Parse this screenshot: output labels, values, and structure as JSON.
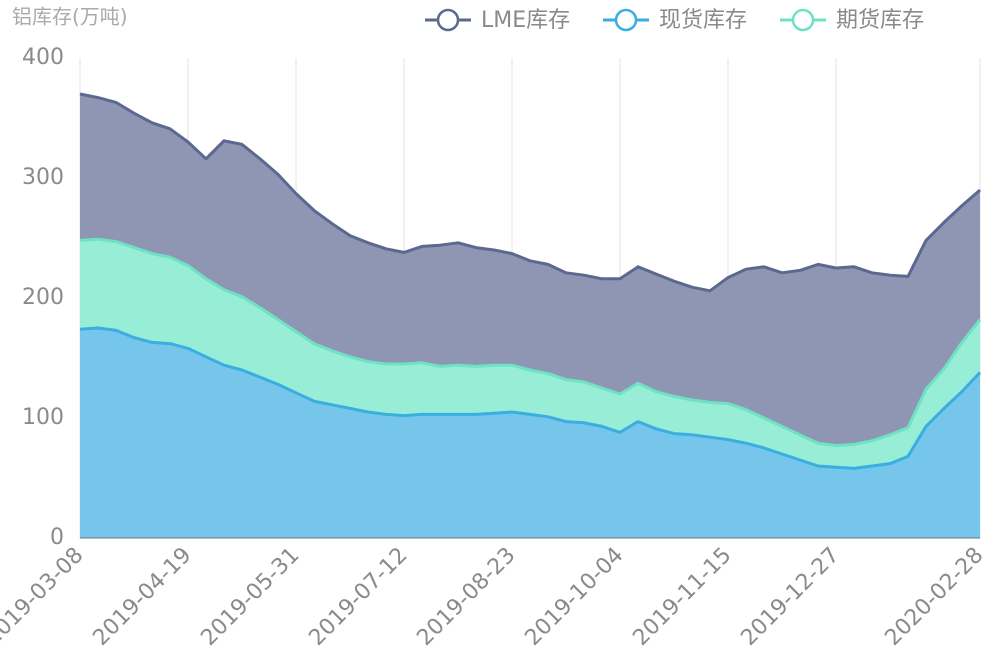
{
  "chart_data": {
    "type": "stacked_area",
    "y_axis_title": "铝库存(万吨)",
    "categories": [
      "2019-03-08",
      null,
      null,
      null,
      null,
      null,
      "2019-04-19",
      null,
      null,
      null,
      null,
      null,
      "2019-05-31",
      null,
      null,
      null,
      null,
      null,
      "2019-07-12",
      null,
      null,
      null,
      null,
      null,
      "2019-08-23",
      null,
      null,
      null,
      null,
      null,
      "2019-10-04",
      null,
      null,
      null,
      null,
      null,
      "2019-11-15",
      null,
      null,
      null,
      null,
      null,
      "2019-12-27",
      null,
      null,
      null,
      null,
      null,
      null,
      null,
      "2020-02-28"
    ],
    "series": [
      {
        "name": "LME库存",
        "color": "#5b6890",
        "fill": "#8e96b3",
        "values": [
          122,
          118,
          116,
          112,
          109,
          107,
          103,
          100,
          124,
          127,
          124,
          121,
          115,
          111,
          106,
          101,
          99,
          96,
          93,
          97,
          101,
          102,
          99,
          96,
          93,
          91,
          91,
          89,
          89,
          91,
          96,
          97,
          98,
          96,
          94,
          93,
          105,
          117,
          126,
          128,
          137,
          149,
          148,
          148,
          140,
          133,
          126,
          124,
          122,
          114,
          108
        ]
      },
      {
        "name": "现货库存",
        "color": "#3aaee0",
        "fill": "#76c6ec",
        "values": [
          174,
          175,
          173,
          167,
          163,
          162,
          158,
          151,
          144,
          140,
          134,
          128,
          121,
          114,
          111,
          108,
          105,
          103,
          102,
          103,
          103,
          103,
          103,
          104,
          105,
          103,
          101,
          97,
          96,
          93,
          88,
          97,
          91,
          87,
          86,
          84,
          82,
          79,
          75,
          70,
          65,
          60,
          59,
          58,
          60,
          62,
          68,
          93,
          108,
          122,
          138
        ]
      },
      {
        "name": "期货库存",
        "color": "#6fe2c3",
        "fill": "#97edd5",
        "values": [
          74,
          74,
          74,
          75,
          74,
          72,
          69,
          65,
          63,
          61,
          58,
          54,
          51,
          48,
          45,
          43,
          42,
          42,
          43,
          43,
          40,
          41,
          40,
          40,
          39,
          37,
          36,
          35,
          34,
          32,
          32,
          32,
          31,
          31,
          29,
          29,
          30,
          28,
          25,
          23,
          21,
          19,
          18,
          20,
          21,
          24,
          24,
          31,
          33,
          41,
          44
        ]
      }
    ],
    "ylim": [
      0,
      400
    ],
    "yticks": [
      0,
      100,
      200,
      300,
      400
    ],
    "grid": true
  }
}
